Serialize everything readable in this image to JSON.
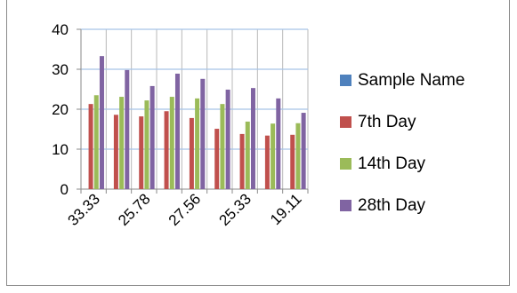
{
  "chart_data": {
    "type": "bar",
    "title": "",
    "xlabel": "",
    "ylabel": "",
    "ylim": [
      0,
      40
    ],
    "yticks": [
      0,
      10,
      20,
      30,
      40
    ],
    "grid": "horizontal",
    "legend_position": "right",
    "categories": [
      "33.33",
      "",
      "25.78",
      "",
      "27.56",
      "",
      "25.33",
      "",
      "19.11"
    ],
    "x_tick_labels": [
      "33.33",
      "25.78",
      "27.56",
      "25.33",
      "19.11"
    ],
    "series": [
      {
        "name": "Sample Name",
        "color": "#4f81bd",
        "values": [
          0,
          0,
          0,
          0,
          0,
          0,
          0,
          0,
          0
        ]
      },
      {
        "name": "7th Day",
        "color": "#c0504d",
        "values": [
          21.3,
          18.6,
          18.2,
          19.5,
          17.8,
          15.1,
          13.8,
          13.4,
          13.6
        ]
      },
      {
        "name": "14th Day",
        "color": "#9bbb59",
        "values": [
          23.5,
          23.1,
          22.2,
          23.1,
          22.7,
          21.3,
          16.9,
          16.4,
          16.5
        ]
      },
      {
        "name": "28th Day",
        "color": "#8064a2",
        "values": [
          33.3,
          29.8,
          25.8,
          28.9,
          27.6,
          24.9,
          25.3,
          22.7,
          19.1
        ]
      }
    ]
  }
}
